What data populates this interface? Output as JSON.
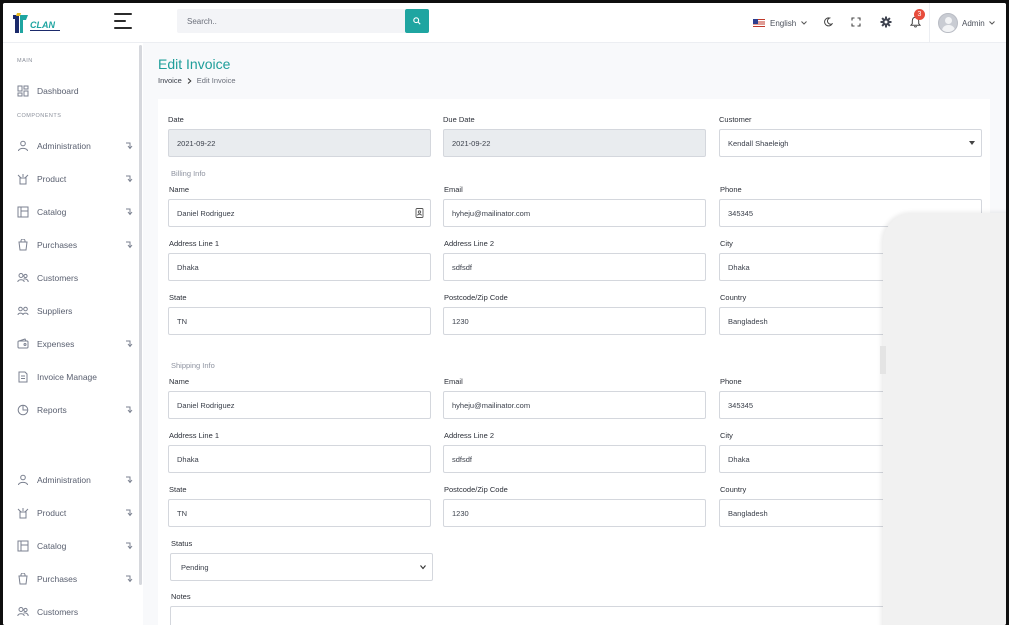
{
  "header": {
    "logo_alt": "ITCLAN",
    "search_placeholder": "Search..",
    "language": "English",
    "notification_count": "3",
    "user_name": "Admin"
  },
  "colors": {
    "accent": "#1fa5a1",
    "badge": "#e74c3c"
  },
  "sidebar": {
    "section_main": "MAIN",
    "section_components": "COMPONENTS",
    "items": [
      {
        "label": "Dashboard",
        "icon": "dashboard-icon",
        "submenu": false
      },
      {
        "label": "Administration",
        "icon": "users-icon",
        "submenu": true
      },
      {
        "label": "Product",
        "icon": "product-icon",
        "submenu": true
      },
      {
        "label": "Catalog",
        "icon": "catalog-icon",
        "submenu": true
      },
      {
        "label": "Purchases",
        "icon": "purchases-icon",
        "submenu": true
      },
      {
        "label": "Customers",
        "icon": "customers-icon",
        "submenu": false
      },
      {
        "label": "Suppliers",
        "icon": "suppliers-icon",
        "submenu": false
      },
      {
        "label": "Expenses",
        "icon": "expenses-icon",
        "submenu": true
      },
      {
        "label": "Invoice Manage",
        "icon": "invoice-icon",
        "submenu": false
      },
      {
        "label": "Reports",
        "icon": "reports-icon",
        "submenu": true
      },
      {
        "label": "Administration",
        "icon": "users-icon",
        "submenu": true
      },
      {
        "label": "Product",
        "icon": "product-icon",
        "submenu": true
      },
      {
        "label": "Catalog",
        "icon": "catalog-icon",
        "submenu": true
      },
      {
        "label": "Purchases",
        "icon": "purchases-icon",
        "submenu": true
      },
      {
        "label": "Customers",
        "icon": "customers-icon",
        "submenu": false
      }
    ]
  },
  "page": {
    "title": "Edit Invoice",
    "breadcrumb": [
      "Invoice",
      "Edit Invoice"
    ]
  },
  "form": {
    "date_label": "Date",
    "date_value": "2021-09-22",
    "due_label": "Due Date",
    "due_value": "2021-09-22",
    "customer_label": "Customer",
    "customer_value": "Kendall Shaeleigh",
    "billing": {
      "heading": "Billing Info",
      "name_label": "Name",
      "name": "Daniel Rodriguez",
      "email_label": "Email",
      "email": "hyheju@mailinator.com",
      "phone_label": "Phone",
      "phone": "345345",
      "addr1_label": "Address Line 1",
      "addr1": "Dhaka",
      "addr2_label": "Address Line 2",
      "addr2": "sdfsdf",
      "city_label": "City",
      "city": "Dhaka",
      "state_label": "State",
      "state": "TN",
      "zip_label": "Postcode/Zip Code",
      "zip": "1230",
      "country_label": "Country",
      "country": "Bangladesh"
    },
    "shipping": {
      "heading": "Shipping Info",
      "name_label": "Name",
      "name": "Daniel Rodriguez",
      "email_label": "Email",
      "email": "hyheju@mailinator.com",
      "phone_label": "Phone",
      "phone": "345345",
      "addr1_label": "Address Line 1",
      "addr1": "Dhaka",
      "addr2_label": "Address Line 2",
      "addr2": "sdfsdf",
      "city_label": "City",
      "city": "Dhaka",
      "state_label": "State",
      "state": "TN",
      "zip_label": "Postcode/Zip Code",
      "zip": "1230",
      "country_label": "Country",
      "country": "Bangladesh"
    },
    "status_label": "Status",
    "status_value": "Pending",
    "notes_label": "Notes"
  }
}
